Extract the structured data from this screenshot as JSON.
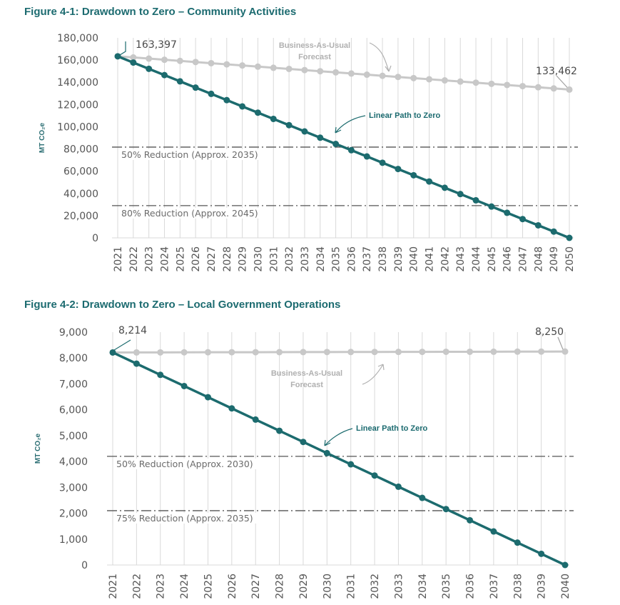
{
  "figures": [
    {
      "title": "Figure 4-1: Drawdown to Zero – Community Activities",
      "ylabel": "MT CO₂e",
      "annotations": {
        "bau_line1": "Business-As-Usual",
        "bau_line2": "Forecast",
        "linear": "Linear Path to Zero",
        "start_value": "163,397",
        "end_value": "133,462"
      },
      "reference_labels": [
        "50% Reduction (Approx. 2035)",
        "80% Reduction (Approx. 2045)"
      ]
    },
    {
      "title": "Figure 4-2: Drawdown to Zero – Local Government Operations",
      "ylabel": "MT CO₂e",
      "annotations": {
        "bau_line1": "Business-As-Usual",
        "bau_line2": "Forecast",
        "linear": "Linear Path to Zero",
        "start_value": "8,214",
        "end_value": "8,250"
      },
      "reference_labels": [
        "50% Reduction (Approx. 2030)",
        "75% Reduction (Approx. 2035)"
      ]
    }
  ],
  "chart_data": [
    {
      "type": "line",
      "title": "Figure 4-1: Drawdown to Zero – Community Activities",
      "xlabel": "",
      "ylabel": "MT CO₂e",
      "ylim": [
        0,
        180000
      ],
      "yticks": [
        "0",
        "20,000",
        "40,000",
        "60,000",
        "80,000",
        "100,000",
        "120,000",
        "140,000",
        "160,000",
        "180,000"
      ],
      "x": [
        "2021",
        "2022",
        "2023",
        "2024",
        "2025",
        "2026",
        "2027",
        "2028",
        "2029",
        "2030",
        "2031",
        "2032",
        "2033",
        "2034",
        "2035",
        "2036",
        "2037",
        "2038",
        "2039",
        "2040",
        "2041",
        "2042",
        "2043",
        "2044",
        "2045",
        "2046",
        "2047",
        "2048",
        "2049",
        "2050"
      ],
      "series": [
        {
          "name": "Business-As-Usual Forecast",
          "color": "#c8c8c8",
          "values": [
            163397,
            162365,
            161333,
            160301,
            159268,
            158236,
            157204,
            156172,
            155140,
            154108,
            153076,
            152043,
            151011,
            149979,
            148947,
            147915,
            146883,
            145851,
            144818,
            143786,
            142754,
            141722,
            140690,
            139658,
            138626,
            137593,
            136561,
            135529,
            134497,
            133462
          ]
        },
        {
          "name": "Linear Path to Zero",
          "color": "#1c6b6e",
          "values": [
            163397,
            157763,
            152129,
            146494,
            140860,
            135226,
            129592,
            123958,
            118323,
            112689,
            107055,
            101421,
            95783,
            90152,
            84518,
            78883,
            73249,
            67615,
            61981,
            56347,
            50712,
            45078,
            39444,
            33810,
            28175,
            22541,
            16907,
            11273,
            5638,
            0
          ]
        }
      ],
      "reference_lines": [
        {
          "label": "50% Reduction (Approx. 2035)",
          "value": 81698
        },
        {
          "label": "80% Reduction (Approx. 2045)",
          "value": 29000
        }
      ],
      "grid": "vertical"
    },
    {
      "type": "line",
      "title": "Figure 4-2: Drawdown to Zero – Local Government Operations",
      "xlabel": "",
      "ylabel": "MT CO₂e",
      "ylim": [
        0,
        9000
      ],
      "yticks": [
        "0",
        "1,000",
        "2,000",
        "3,000",
        "4,000",
        "5,000",
        "6,000",
        "7,000",
        "8,000",
        "9,000"
      ],
      "x": [
        "2021",
        "2022",
        "2023",
        "2024",
        "2025",
        "2026",
        "2027",
        "2028",
        "2029",
        "2030",
        "2031",
        "2032",
        "2033",
        "2034",
        "2035",
        "2036",
        "2037",
        "2038",
        "2039",
        "2040"
      ],
      "series": [
        {
          "name": "Business-As-Usual Forecast",
          "color": "#c8c8c8",
          "values": [
            8214,
            8216,
            8218,
            8220,
            8222,
            8224,
            8225,
            8227,
            8229,
            8231,
            8233,
            8235,
            8237,
            8239,
            8241,
            8242,
            8244,
            8246,
            8248,
            8250
          ]
        },
        {
          "name": "Linear Path to Zero",
          "color": "#1c6b6e",
          "values": [
            8214,
            7782,
            7349,
            6917,
            6485,
            6053,
            5620,
            5188,
            4756,
            4323,
            3891,
            3459,
            3026,
            2594,
            2162,
            1730,
            1297,
            865,
            432,
            0
          ]
        }
      ],
      "reference_lines": [
        {
          "label": "50% Reduction (Approx. 2030)",
          "value": 4200
        },
        {
          "label": "75% Reduction (Approx. 2035)",
          "value": 2100
        }
      ],
      "grid": "vertical"
    }
  ]
}
